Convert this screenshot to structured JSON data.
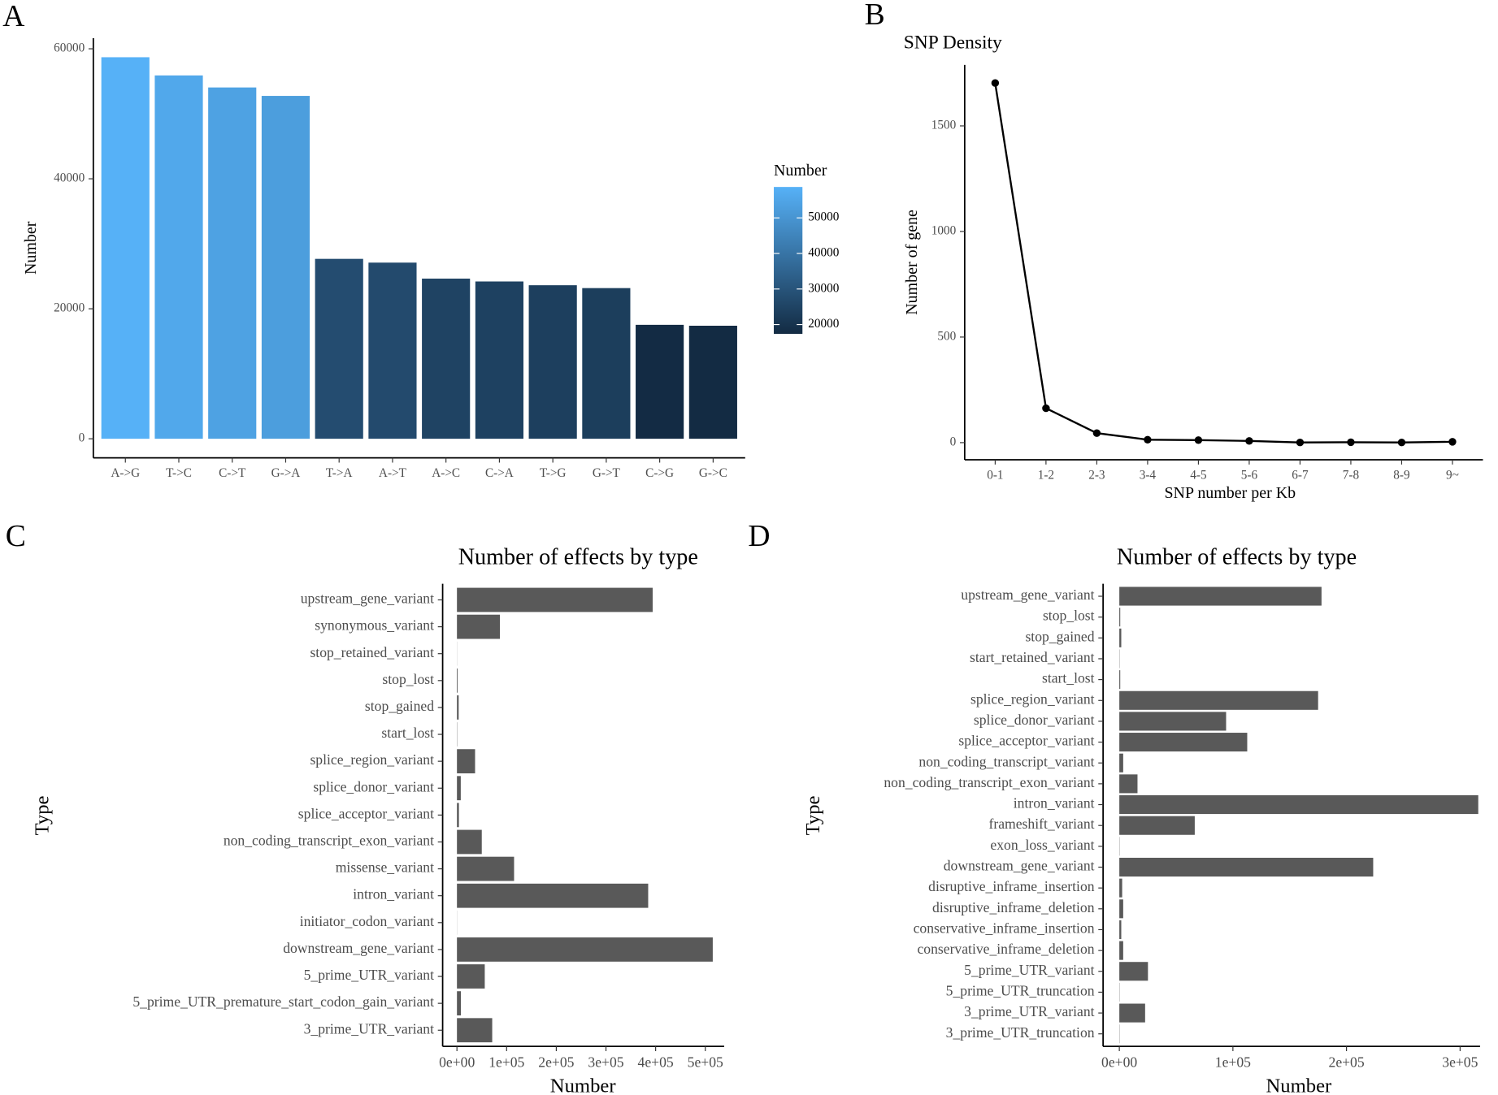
{
  "chart_data": [
    {
      "type": "bar",
      "panel": "A",
      "ylabel": "Number",
      "categories": [
        "A->G",
        "T->C",
        "C->T",
        "G->A",
        "T->A",
        "A->T",
        "A->C",
        "C->A",
        "T->G",
        "G->T",
        "C->G",
        "G->C"
      ],
      "values": [
        58700,
        55900,
        54050,
        52750,
        27680,
        27100,
        24640,
        24200,
        23620,
        23180,
        17530,
        17390
      ],
      "ylim": [
        -2935,
        61635
      ],
      "yticks": [
        0,
        20000,
        40000,
        60000
      ],
      "legend": {
        "title": "Number",
        "low": "#132B43",
        "high": "#56B1F7",
        "ticks": [
          20000,
          30000,
          40000,
          50000
        ]
      }
    },
    {
      "type": "line",
      "panel": "B",
      "title": "SNP Density",
      "xlabel": "SNP number per Kb",
      "ylabel": "Number of gene",
      "categories": [
        "0-1",
        "1-2",
        "2-3",
        "3-4",
        "4-5",
        "5-6",
        "6-7",
        "7-8",
        "8-9",
        "9~"
      ],
      "values": [
        1703,
        163,
        45,
        14,
        12,
        8,
        1,
        2,
        1,
        4
      ],
      "color": "#000000",
      "ylim": [
        -81,
        1789
      ],
      "yticks": [
        0,
        500,
        1000,
        1500
      ]
    },
    {
      "type": "barh",
      "panel": "C",
      "title": "Number of effects by type",
      "xlabel": "Number",
      "ylabel": "Type",
      "color": "#595959",
      "categories": [
        "upstream_gene_variant",
        "synonymous_variant",
        "stop_retained_variant",
        "stop_lost",
        "stop_gained",
        "start_lost",
        "splice_region_variant",
        "splice_donor_variant",
        "splice_acceptor_variant",
        "non_coding_transcript_exon_variant",
        "missense_variant",
        "intron_variant",
        "initiator_codon_variant",
        "downstream_gene_variant",
        "5_prime_UTR_variant",
        "5_prime_UTR_premature_start_codon_gain_variant",
        "3_prime_UTR_variant"
      ],
      "values": [
        394000,
        86500,
        200,
        1500,
        3500,
        500,
        36500,
        7700,
        4000,
        50000,
        115000,
        385000,
        200,
        515000,
        56000,
        8000,
        71000
      ],
      "xlim": [
        -28800,
        538000
      ],
      "xticks": [
        {
          "value": 0,
          "label": "0e+00"
        },
        {
          "value": 100000,
          "label": "1e+05"
        },
        {
          "value": 200000,
          "label": "2e+05"
        },
        {
          "value": 300000,
          "label": "3e+05"
        },
        {
          "value": 400000,
          "label": "4e+05"
        },
        {
          "value": 500000,
          "label": "5e+05"
        }
      ]
    },
    {
      "type": "barh",
      "panel": "D",
      "title": "Number of effects by type",
      "xlabel": "Number",
      "ylabel": "Type",
      "color": "#595959",
      "categories": [
        "upstream_gene_variant",
        "stop_lost",
        "stop_gained",
        "start_retained_variant",
        "start_lost",
        "splice_region_variant",
        "splice_donor_variant",
        "splice_acceptor_variant",
        "non_coding_transcript_variant",
        "non_coding_transcript_exon_variant",
        "intron_variant",
        "frameshift_variant",
        "exon_loss_variant",
        "downstream_gene_variant",
        "disruptive_inframe_insertion",
        "disruptive_inframe_deletion",
        "conservative_inframe_insertion",
        "conservative_inframe_deletion",
        "5_prime_UTR_variant",
        "5_prime_UTR_truncation",
        "3_prime_UTR_variant",
        "3_prime_UTR_truncation"
      ],
      "values": [
        178000,
        800,
        1700,
        200,
        800,
        175000,
        94000,
        112600,
        3400,
        16000,
        316000,
        66400,
        200,
        223500,
        2500,
        3400,
        1700,
        3400,
        25200,
        200,
        22700,
        200
      ],
      "xlim": [
        -14300,
        317600
      ],
      "xticks": [
        {
          "value": 0,
          "label": "0e+00"
        },
        {
          "value": 100000,
          "label": "1e+05"
        },
        {
          "value": 200000,
          "label": "2e+05"
        },
        {
          "value": 300000,
          "label": "3e+05"
        }
      ]
    }
  ]
}
